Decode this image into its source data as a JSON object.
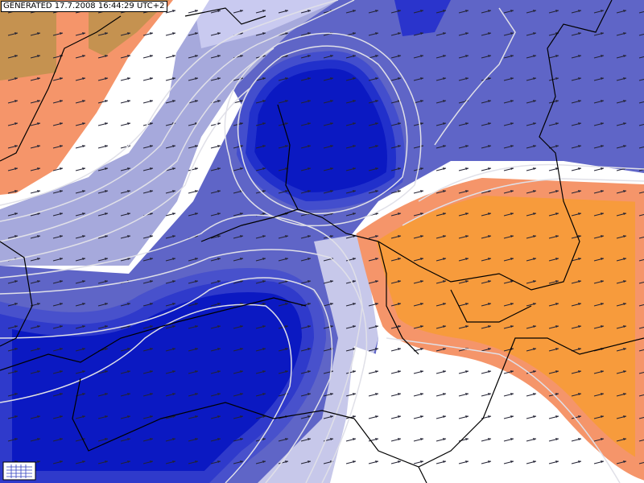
{
  "header": {
    "title": "GENERATED 17.7.2008 16:44:29 UTC+2"
  }
}
